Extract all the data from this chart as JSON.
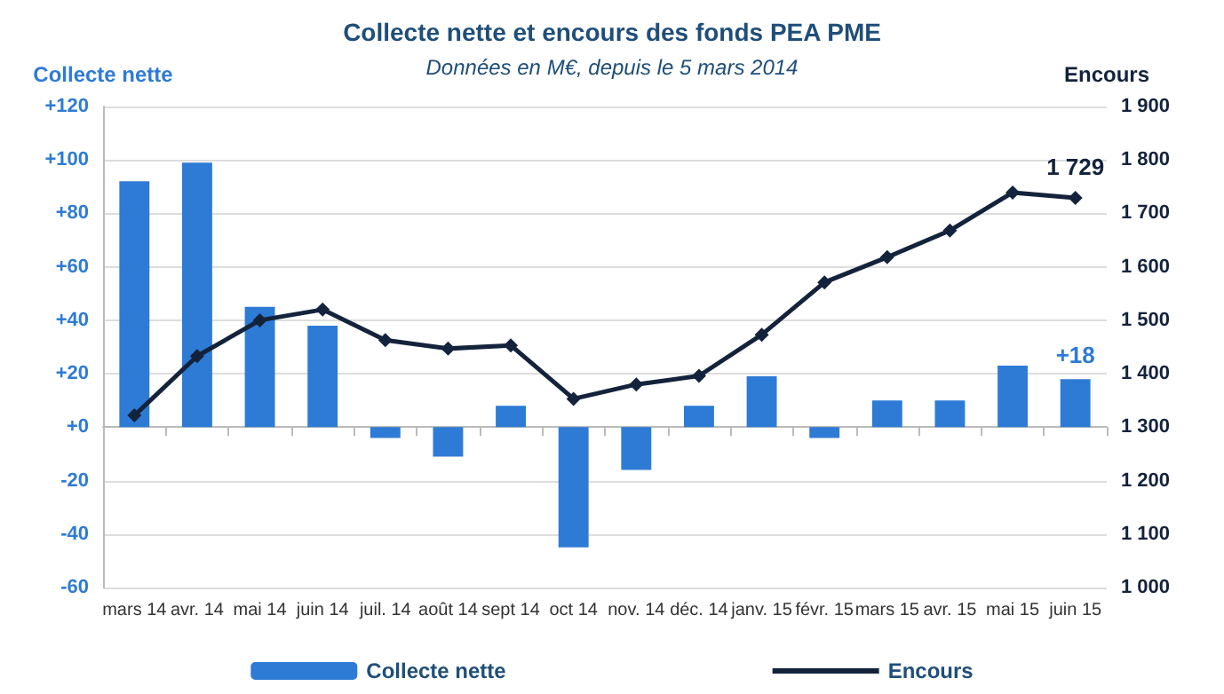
{
  "chart_data": {
    "type": "bar",
    "title": "Collecte nette et encours des fonds PEA PME",
    "subtitle": "Données en M€, depuis le 5 mars 2014",
    "ylabel": "Collecte nette",
    "y2label": "Encours",
    "categories": [
      "mars 14",
      "avr. 14",
      "mai 14",
      "juin 14",
      "juil. 14",
      "août 14",
      "sept 14",
      "oct 14",
      "nov. 14",
      "déc. 14",
      "janv. 15",
      "févr. 15",
      "mars 15",
      "avr. 15",
      "mai 15",
      "juin 15"
    ],
    "series": [
      {
        "name": "Collecte nette",
        "color": "#2e7bd6",
        "values": [
          92,
          99,
          45,
          38,
          -4,
          -11,
          8,
          -45,
          -16,
          8,
          19,
          -4,
          10,
          10,
          23,
          18
        ],
        "value_labels": [
          null,
          null,
          null,
          null,
          null,
          null,
          null,
          null,
          null,
          null,
          null,
          null,
          null,
          null,
          null,
          "+18"
        ]
      },
      {
        "name": "Encours",
        "type": "line",
        "axis": "y2",
        "color": "#14233c",
        "marker": "diamond",
        "values": [
          1322,
          1433,
          1500,
          1520,
          1463,
          1447,
          1453,
          1353,
          1380,
          1396,
          1473,
          1571,
          1618,
          1668,
          1739,
          1729
        ],
        "value_labels": [
          null,
          null,
          null,
          null,
          null,
          null,
          null,
          null,
          null,
          null,
          null,
          null,
          null,
          null,
          null,
          "1 729"
        ]
      }
    ],
    "ylim": [
      -60,
      120
    ],
    "yticks": [
      {
        "value": -60,
        "label": "-60"
      },
      {
        "value": -40,
        "label": "-40"
      },
      {
        "value": -20,
        "label": "-20"
      },
      {
        "value": 0,
        "label": "+0"
      },
      {
        "value": 20,
        "label": "+20"
      },
      {
        "value": 40,
        "label": "+40"
      },
      {
        "value": 60,
        "label": "+60"
      },
      {
        "value": 80,
        "label": "+80"
      },
      {
        "value": 100,
        "label": "+100"
      },
      {
        "value": 120,
        "label": "+120"
      }
    ],
    "y2lim": [
      1000,
      1900
    ],
    "y2ticks": [
      {
        "value": 1000,
        "label": "1 000"
      },
      {
        "value": 1100,
        "label": "1 100"
      },
      {
        "value": 1200,
        "label": "1 200"
      },
      {
        "value": 1300,
        "label": "1 300"
      },
      {
        "value": 1400,
        "label": "1 400"
      },
      {
        "value": 1500,
        "label": "1 500"
      },
      {
        "value": 1600,
        "label": "1 600"
      },
      {
        "value": 1700,
        "label": "1 700"
      },
      {
        "value": 1800,
        "label": "1 800"
      },
      {
        "value": 1900,
        "label": "1 900"
      }
    ],
    "grid": "y",
    "legend": "bottom"
  }
}
